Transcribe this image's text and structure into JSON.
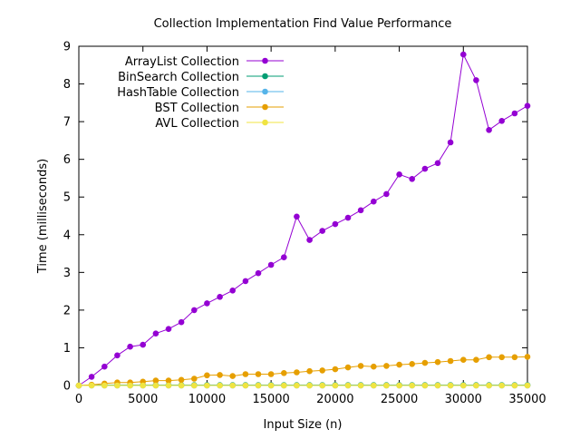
{
  "chart_data": {
    "type": "line",
    "title": "Collection Implementation Find Value Performance",
    "xlabel": "Input Size (n)",
    "ylabel": "Time (milliseconds)",
    "xlim": [
      0,
      35000
    ],
    "ylim": [
      0,
      9
    ],
    "xticks": [
      0,
      5000,
      10000,
      15000,
      20000,
      25000,
      30000,
      35000
    ],
    "yticks": [
      0,
      1,
      2,
      3,
      4,
      5,
      6,
      7,
      8,
      9
    ],
    "grid": false,
    "legend_position": "top-left",
    "x": [
      0,
      1000,
      2000,
      3000,
      4000,
      5000,
      6000,
      7000,
      8000,
      9000,
      10000,
      11000,
      12000,
      13000,
      14000,
      15000,
      16000,
      17000,
      18000,
      19000,
      20000,
      21000,
      22000,
      23000,
      24000,
      25000,
      26000,
      27000,
      28000,
      29000,
      30000,
      31000,
      32000,
      33000,
      34000,
      35000
    ],
    "series": [
      {
        "name": "ArrayList Collection",
        "color": "#9400d3",
        "values": [
          0.0,
          0.23,
          0.5,
          0.8,
          1.03,
          1.08,
          1.38,
          1.5,
          1.68,
          2.0,
          2.18,
          2.35,
          2.52,
          2.77,
          2.98,
          3.2,
          3.4,
          4.48,
          3.86,
          4.1,
          4.28,
          4.45,
          4.65,
          4.88,
          5.08,
          5.6,
          5.48,
          5.75,
          5.9,
          6.45,
          8.78,
          8.1,
          6.78,
          7.02,
          7.22,
          7.42
        ]
      },
      {
        "name": "BinSearch Collection",
        "color": "#009e73",
        "values": [
          0.0,
          0.01,
          0.01,
          0.01,
          0.01,
          0.01,
          0.01,
          0.01,
          0.01,
          0.01,
          0.01,
          0.01,
          0.01,
          0.01,
          0.01,
          0.01,
          0.01,
          0.01,
          0.01,
          0.01,
          0.01,
          0.01,
          0.01,
          0.01,
          0.01,
          0.01,
          0.01,
          0.01,
          0.01,
          0.01,
          0.01,
          0.01,
          0.01,
          0.01,
          0.01,
          0.01
        ]
      },
      {
        "name": "HashTable Collection",
        "color": "#56b4e9",
        "values": [
          0.0,
          0.0,
          0.0,
          0.0,
          0.0,
          0.0,
          0.0,
          0.0,
          0.0,
          0.0,
          0.0,
          0.0,
          0.0,
          0.0,
          0.0,
          0.0,
          0.0,
          0.0,
          0.0,
          0.0,
          0.0,
          0.0,
          0.0,
          0.0,
          0.0,
          0.0,
          0.0,
          0.0,
          0.0,
          0.0,
          0.0,
          0.0,
          0.0,
          0.0,
          0.0,
          0.0
        ]
      },
      {
        "name": "BST Collection",
        "color": "#e69f00",
        "values": [
          0.0,
          0.02,
          0.05,
          0.08,
          0.08,
          0.1,
          0.13,
          0.13,
          0.15,
          0.18,
          0.27,
          0.28,
          0.25,
          0.3,
          0.3,
          0.3,
          0.33,
          0.35,
          0.38,
          0.4,
          0.43,
          0.48,
          0.52,
          0.5,
          0.52,
          0.55,
          0.57,
          0.6,
          0.62,
          0.65,
          0.68,
          0.68,
          0.75,
          0.75,
          0.75,
          0.76
        ]
      },
      {
        "name": "AVL Collection",
        "color": "#f0e442",
        "values": [
          0.0,
          0.0,
          0.0,
          0.0,
          0.0,
          0.0,
          0.0,
          0.0,
          0.0,
          0.0,
          0.0,
          0.0,
          0.0,
          0.0,
          0.0,
          0.0,
          0.0,
          0.0,
          0.0,
          0.0,
          0.0,
          0.0,
          0.0,
          0.0,
          0.0,
          0.0,
          0.0,
          0.0,
          0.0,
          0.0,
          0.0,
          0.0,
          0.0,
          0.0,
          0.0,
          0.0
        ]
      }
    ]
  }
}
